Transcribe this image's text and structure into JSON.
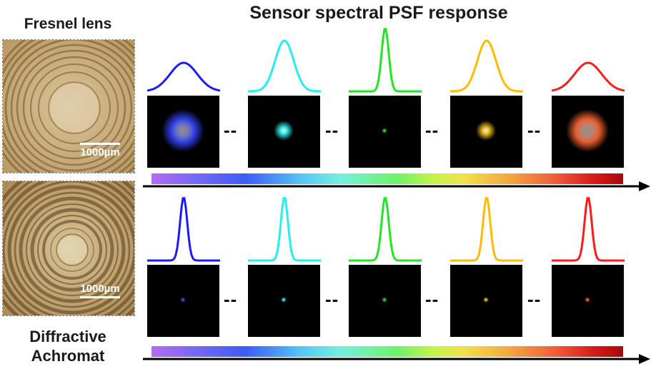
{
  "title": "Sensor spectral PSF response",
  "lenses": {
    "top": {
      "label": "Fresnel lens",
      "scale_label": "1000µm"
    },
    "bottom": {
      "label_line1": "Diffractive",
      "label_line2": "Achromat",
      "scale_label": "1000µm"
    }
  },
  "separator": "--",
  "colors": [
    "#1a1aff",
    "#22f0f0",
    "#22e622",
    "#ffbb00",
    "#ff1a1a"
  ],
  "psf_colors": [
    "#3344ff",
    "#33ffff",
    "#33dd33",
    "#ffcc22",
    "#ff6633"
  ],
  "spread_top": [
    "wide",
    "medium",
    "narrow",
    "medium",
    "wide"
  ],
  "spread_bottom": [
    "narrow",
    "narrow",
    "narrow",
    "narrow",
    "narrow"
  ]
}
